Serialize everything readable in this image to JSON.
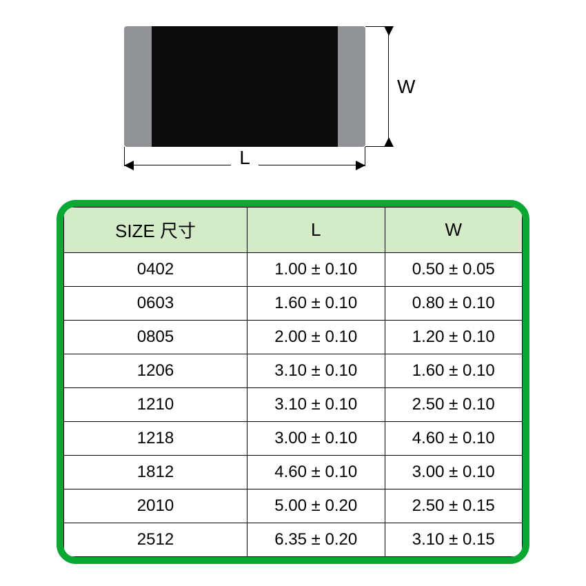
{
  "diagram": {
    "component": {
      "body_color": "#0c0c0c",
      "terminal_color": "#909296"
    },
    "dimension_labels": {
      "length": "L",
      "width": "W"
    },
    "dimension_line_color": "#000000"
  },
  "table": {
    "type": "table",
    "border_color": "#0aa733",
    "header_bg": "#d3ecc7",
    "row_bg": "#ffffff",
    "text_color": "#000000",
    "grid_color": "#000000",
    "header_fontsize": 26,
    "cell_fontsize": 24,
    "columns": [
      {
        "key": "size",
        "label": "SIZE 尺寸",
        "width_pct": 40
      },
      {
        "key": "L",
        "label": "L",
        "width_pct": 30
      },
      {
        "key": "W",
        "label": "W",
        "width_pct": 30
      }
    ],
    "rows": [
      {
        "size": "0402",
        "L": "1.00 ± 0.10",
        "W": "0.50 ± 0.05"
      },
      {
        "size": "0603",
        "L": "1.60 ± 0.10",
        "W": "0.80 ± 0.10"
      },
      {
        "size": "0805",
        "L": "2.00 ± 0.10",
        "W": "1.20 ± 0.10"
      },
      {
        "size": "1206",
        "L": "3.10 ± 0.10",
        "W": "1.60 ± 0.10"
      },
      {
        "size": "1210",
        "L": "3.10 ± 0.10",
        "W": "2.50 ± 0.10"
      },
      {
        "size": "1218",
        "L": "3.00 ± 0.10",
        "W": "4.60 ± 0.10"
      },
      {
        "size": "1812",
        "L": "4.60 ± 0.10",
        "W": "3.00 ± 0.10"
      },
      {
        "size": "2010",
        "L": "5.00 ± 0.20",
        "W": "2.50 ± 0.15"
      },
      {
        "size": "2512",
        "L": "6.35 ± 0.20",
        "W": "3.10 ± 0.15"
      }
    ]
  }
}
